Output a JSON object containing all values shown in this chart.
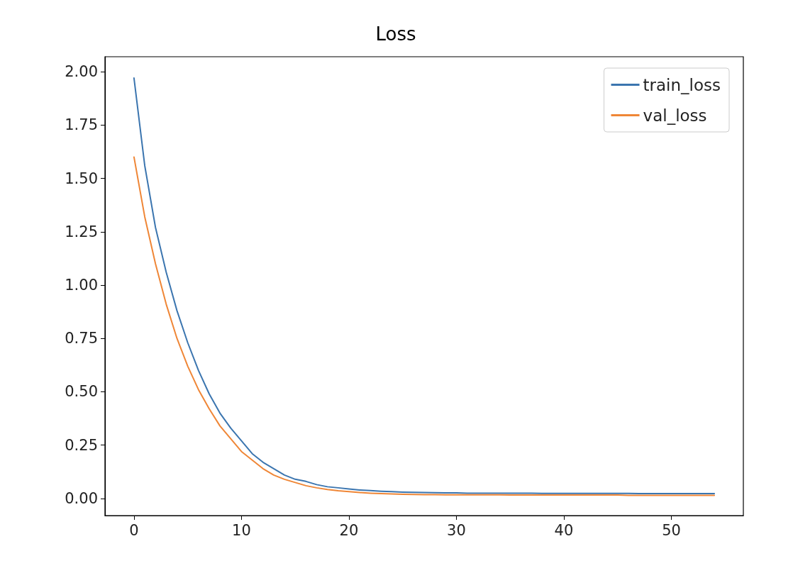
{
  "chart_data": {
    "type": "line",
    "title": "Loss",
    "x": [
      0,
      1,
      2,
      3,
      4,
      5,
      6,
      7,
      8,
      9,
      10,
      11,
      12,
      13,
      14,
      15,
      16,
      17,
      18,
      19,
      20,
      21,
      22,
      23,
      24,
      25,
      26,
      27,
      28,
      29,
      30,
      31,
      32,
      33,
      34,
      35,
      36,
      37,
      38,
      39,
      40,
      41,
      42,
      43,
      44,
      45,
      46,
      47,
      48,
      49,
      50,
      51,
      52,
      53,
      54
    ],
    "series": [
      {
        "name": "train_loss",
        "color": "#3b75af",
        "values": [
          1.97,
          1.56,
          1.27,
          1.06,
          0.88,
          0.73,
          0.6,
          0.49,
          0.4,
          0.33,
          0.27,
          0.21,
          0.17,
          0.14,
          0.11,
          0.09,
          0.08,
          0.065,
          0.055,
          0.05,
          0.045,
          0.04,
          0.037,
          0.034,
          0.032,
          0.03,
          0.029,
          0.028,
          0.027,
          0.026,
          0.026,
          0.025,
          0.025,
          0.025,
          0.025,
          0.025,
          0.025,
          0.025,
          0.024,
          0.024,
          0.024,
          0.024,
          0.024,
          0.024,
          0.024,
          0.024,
          0.024,
          0.023,
          0.023,
          0.023,
          0.023,
          0.023,
          0.023,
          0.023,
          0.023
        ]
      },
      {
        "name": "val_loss",
        "color": "#ef8636",
        "values": [
          1.6,
          1.32,
          1.1,
          0.91,
          0.75,
          0.62,
          0.51,
          0.42,
          0.34,
          0.28,
          0.22,
          0.18,
          0.14,
          0.11,
          0.09,
          0.075,
          0.06,
          0.05,
          0.042,
          0.036,
          0.032,
          0.028,
          0.025,
          0.023,
          0.021,
          0.02,
          0.019,
          0.018,
          0.018,
          0.017,
          0.017,
          0.017,
          0.017,
          0.017,
          0.017,
          0.016,
          0.016,
          0.016,
          0.016,
          0.016,
          0.016,
          0.016,
          0.016,
          0.016,
          0.016,
          0.016,
          0.015,
          0.015,
          0.015,
          0.015,
          0.015,
          0.015,
          0.015,
          0.015,
          0.015
        ]
      }
    ],
    "xlim": [
      -2.7,
      56.7
    ],
    "xticks": [
      0,
      10,
      20,
      30,
      40,
      50
    ],
    "ylim": [
      -0.08,
      2.07
    ],
    "yticks": [
      {
        "value": 0,
        "label": "0.00"
      },
      0.25,
      {
        "value": 0.5,
        "label": "0.50"
      },
      0.75,
      {
        "value": 1,
        "label": "1.00"
      },
      1.25,
      {
        "value": 1.5,
        "label": "1.50"
      },
      1.75,
      {
        "value": 2,
        "label": "2.00"
      }
    ],
    "grid": false,
    "legend": "top right",
    "marker": "none",
    "line_style": "solid"
  }
}
